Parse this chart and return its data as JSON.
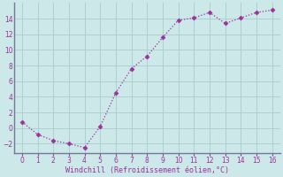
{
  "x": [
    0,
    1,
    2,
    3,
    4,
    5,
    6,
    7,
    8,
    9,
    10,
    11,
    12,
    13,
    14,
    15,
    16
  ],
  "y": [
    0.8,
    -0.8,
    -1.6,
    -2.0,
    -2.5,
    0.2,
    4.5,
    7.6,
    9.2,
    11.6,
    13.8,
    14.1,
    14.8,
    13.4,
    14.1,
    14.8,
    15.1
  ],
  "line_color": "#993399",
  "marker_color": "#993399",
  "bg_color": "#cce8e8",
  "grid_color": "#aacccc",
  "xlabel": "Windchill (Refroidissement éolien,°C)",
  "xlabel_color": "#993399",
  "tick_color": "#993399",
  "spine_color": "#777799",
  "xlim": [
    -0.5,
    16.5
  ],
  "ylim": [
    -3.2,
    16.0
  ],
  "xticks": [
    0,
    1,
    2,
    3,
    4,
    5,
    6,
    7,
    8,
    9,
    10,
    11,
    12,
    13,
    14,
    15,
    16
  ],
  "yticks": [
    -2,
    0,
    2,
    4,
    6,
    8,
    10,
    12,
    14
  ]
}
